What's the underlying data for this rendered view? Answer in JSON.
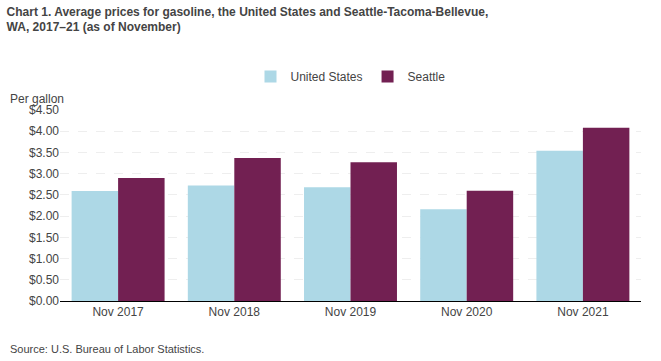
{
  "chart_data": {
    "type": "bar",
    "title": "Chart 1. Average prices for gasoline, the United States and Seattle-Tacoma-Bellevue,\nWA, 2017–21 (as of November)",
    "ylabel": "Per gallon",
    "source": "Source: U.S. Bureau of Labor Statistics.",
    "categories": [
      "Nov 2017",
      "Nov 2018",
      "Nov 2019",
      "Nov 2020",
      "Nov 2021"
    ],
    "series": [
      {
        "name": "United States",
        "color": "#ADD8E6",
        "values": [
          2.59,
          2.72,
          2.68,
          2.16,
          3.54
        ]
      },
      {
        "name": "Seattle",
        "color": "#722052",
        "values": [
          2.9,
          3.37,
          3.27,
          2.6,
          4.08
        ]
      }
    ],
    "ylim": [
      0,
      4.5
    ],
    "yticks": [
      {
        "value": 0.0,
        "label": "$0.00"
      },
      {
        "value": 0.5,
        "label": "$0.50"
      },
      {
        "value": 1.0,
        "label": "$1.00"
      },
      {
        "value": 1.5,
        "label": "$1.50"
      },
      {
        "value": 2.0,
        "label": "$2.00"
      },
      {
        "value": 2.5,
        "label": "$2.50"
      },
      {
        "value": 3.0,
        "label": "$3.00"
      },
      {
        "value": 3.5,
        "label": "$3.50"
      },
      {
        "value": 4.0,
        "label": "$4.00"
      },
      {
        "value": 4.5,
        "label": "$4.50"
      }
    ],
    "grid": true,
    "legend": "top"
  }
}
